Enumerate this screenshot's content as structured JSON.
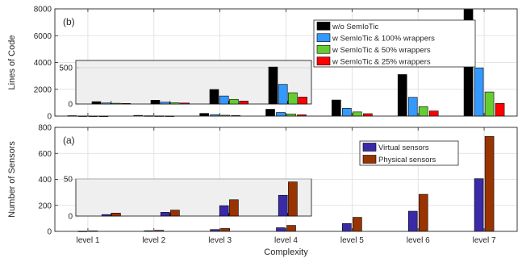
{
  "chart_data": [
    {
      "panel_label": "(b)",
      "type": "bar",
      "ylabel": "Lines of Code",
      "xlabel": "",
      "ylim": [
        0,
        8000
      ],
      "yticks": [
        0,
        2000,
        4000,
        6000,
        8000
      ],
      "grid": true,
      "legend": "top-right",
      "categories": [
        "level 1",
        "level 2",
        "level 3",
        "level 4",
        "level 5",
        "level 6",
        "level 7"
      ],
      "series": [
        {
          "name": "w/o SemIoTic",
          "color": "#000000",
          "values": [
            32,
            52,
            200,
            510,
            1200,
            3100,
            7950
          ]
        },
        {
          "name": "w SemIoTic & 100% wrappers",
          "color": "#3399ff",
          "values": [
            14,
            25,
            110,
            270,
            580,
            1400,
            3600
          ]
        },
        {
          "name": "w SemIoTic & 50% wrappers",
          "color": "#66cc33",
          "values": [
            10,
            17,
            64,
            155,
            310,
            700,
            1800
          ]
        },
        {
          "name": "w SemIoTic & 25% wrappers",
          "color": "#ff0000",
          "values": [
            8,
            13,
            40,
            95,
            180,
            380,
            950
          ]
        }
      ],
      "inset": {
        "categories": [
          "level 1",
          "level 2",
          "level 3",
          "level 4"
        ],
        "ylim": [
          0,
          600
        ],
        "yticks": [
          0,
          500
        ]
      }
    },
    {
      "panel_label": "(a)",
      "type": "bar",
      "ylabel": "Number of Sensors",
      "xlabel": "Complexity",
      "ylim": [
        0,
        800
      ],
      "yticks": [
        0,
        200,
        400,
        600,
        800
      ],
      "grid": true,
      "legend": "top-right",
      "categories": [
        "level 1",
        "level 2",
        "level 3",
        "level 4",
        "level 5",
        "level 6",
        "level 7"
      ],
      "series": [
        {
          "name": "Virtual sensors",
          "color": "#3a2aa8",
          "values": [
            2,
            5,
            14,
            28,
            60,
            155,
            405
          ]
        },
        {
          "name": "Physical sensors",
          "color": "#993300",
          "values": [
            4,
            8,
            22,
            46,
            108,
            285,
            730
          ]
        }
      ],
      "inset": {
        "categories": [
          "level 1",
          "level 2",
          "level 3",
          "level 4"
        ],
        "ylim": [
          0,
          50
        ],
        "yticks": [
          0,
          50
        ]
      }
    }
  ]
}
